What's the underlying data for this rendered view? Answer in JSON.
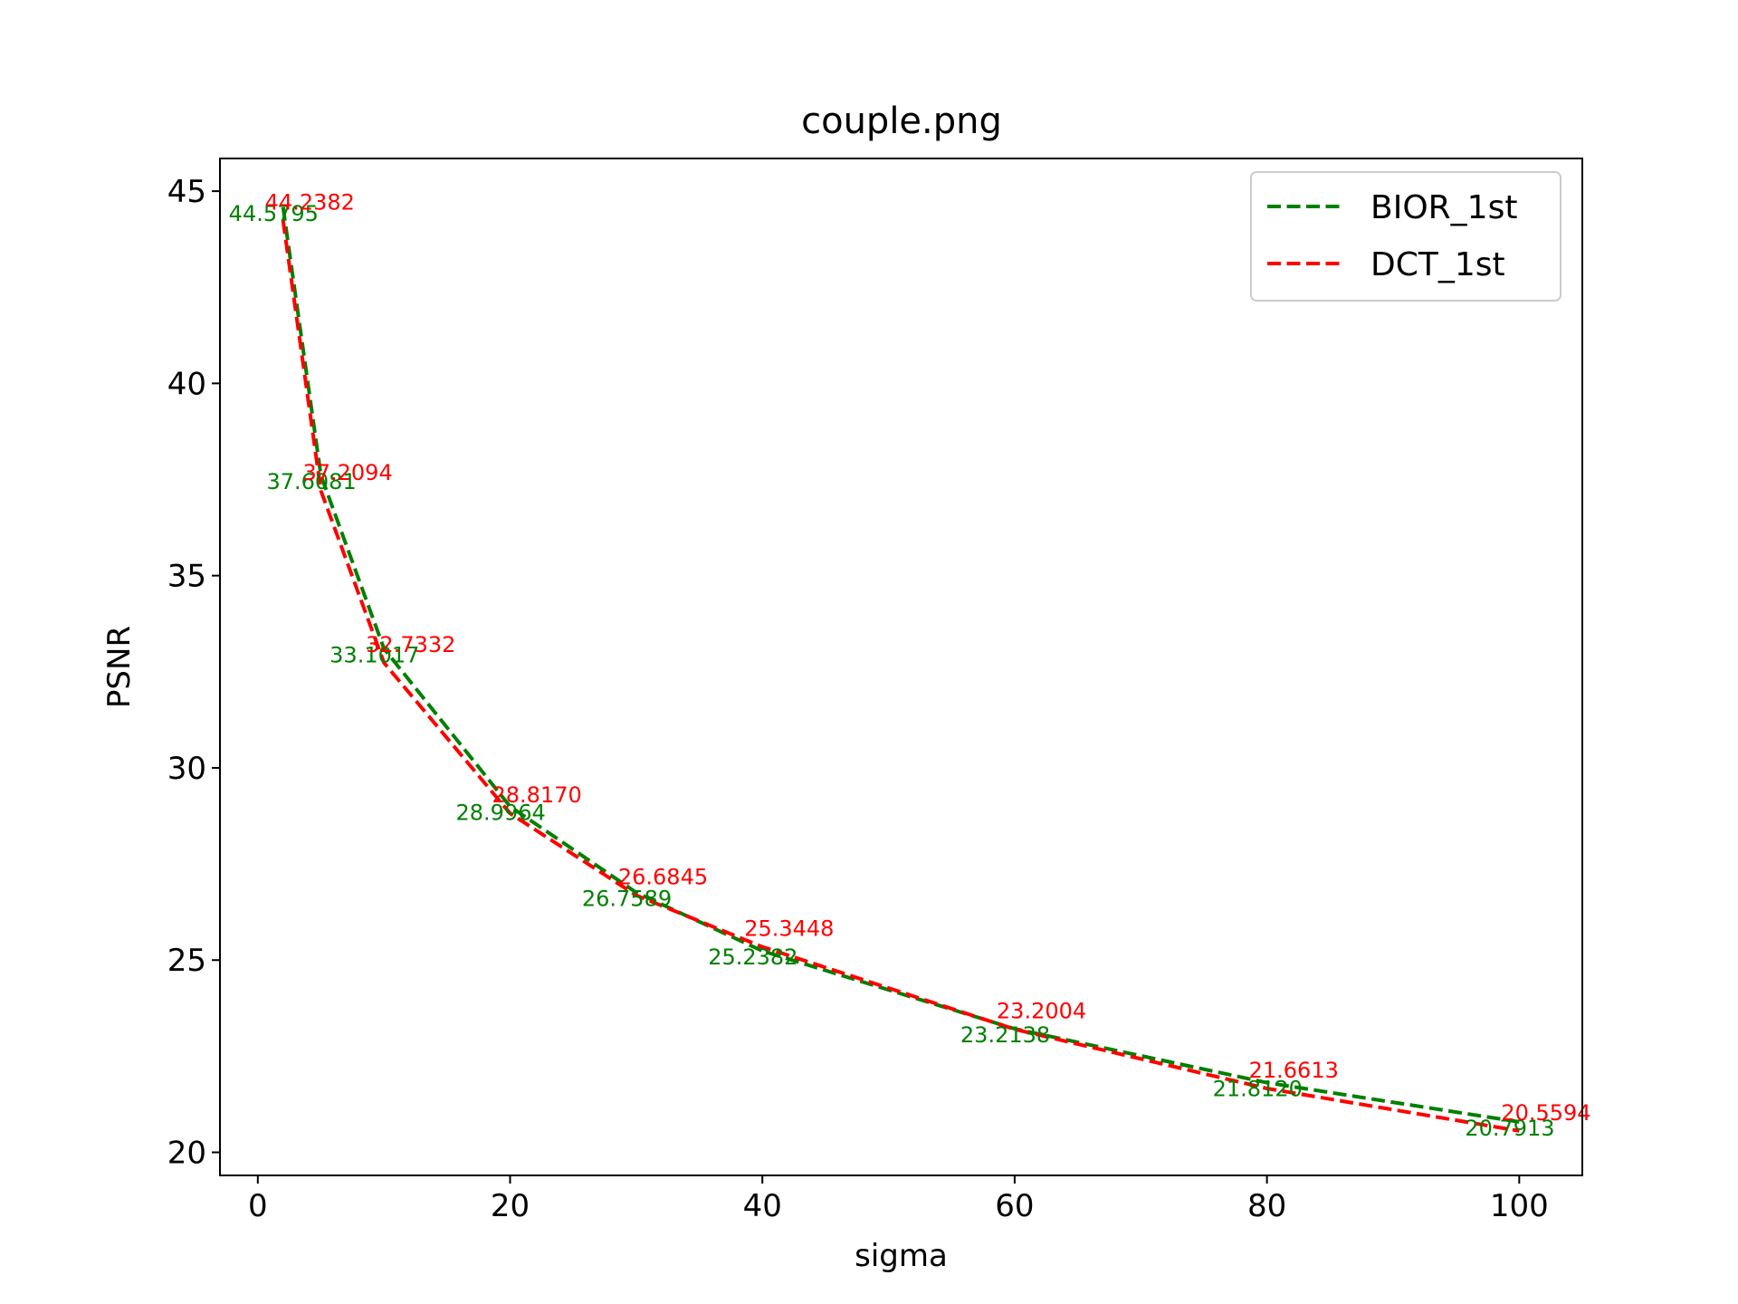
{
  "chart_data": {
    "type": "line",
    "title": "couple.png",
    "xlabel": "sigma",
    "ylabel": "PSNR",
    "xlim": [
      -3,
      105
    ],
    "ylim": [
      19.4,
      45.85
    ],
    "x_ticks": [
      0,
      20,
      40,
      60,
      80,
      100
    ],
    "y_ticks": [
      20,
      25,
      30,
      35,
      40,
      45
    ],
    "grid": false,
    "legend_position": "top-right",
    "x": [
      2,
      5,
      10,
      20,
      30,
      40,
      60,
      80,
      100
    ],
    "series": [
      {
        "name": "BIOR_1st",
        "color": "#008000",
        "style": "dashed",
        "values": [
          44.5795,
          37.6081,
          33.1017,
          28.9964,
          26.7589,
          25.2382,
          23.2138,
          21.812,
          20.7913
        ],
        "labels": [
          "44.5795",
          "37.6081",
          "33.1017",
          "28.9964",
          "26.7589",
          "25.2382",
          "23.2138",
          "21.8120",
          "20.7913"
        ]
      },
      {
        "name": "DCT_1st",
        "color": "#ff0000",
        "style": "dashed",
        "values": [
          44.2382,
          37.2094,
          32.7332,
          28.817,
          26.6845,
          25.3448,
          23.2004,
          21.6613,
          20.5594
        ],
        "labels": [
          "44.2382",
          "37.2094",
          "32.7332",
          "28.8170",
          "26.6845",
          "25.3448",
          "23.2004",
          "21.6613",
          "20.5594"
        ]
      }
    ]
  }
}
